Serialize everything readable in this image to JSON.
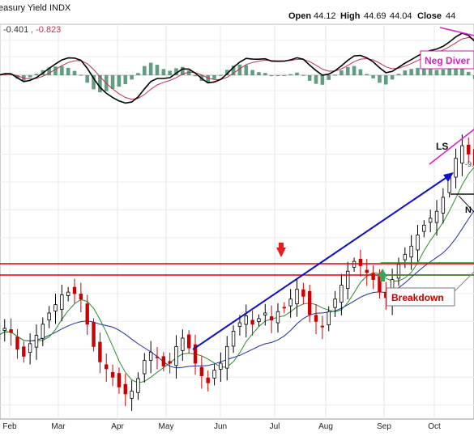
{
  "header": {
    "title": "easury Yield INDX",
    "open_label": "Open",
    "open_value": "44.12",
    "high_label": "High",
    "high_value": "44.69",
    "low_value": "44.04",
    "close_label": "Close",
    "close_value": "44"
  },
  "macd": {
    "values_text_1": "-0.401",
    "values_text_2": ", -0.823",
    "annotation": "Neg Diver",
    "colors": {
      "macd_line": "#000000",
      "signal_line": "#c0304a",
      "histogram": "#2e7d5b",
      "annotation": "#e020c0"
    }
  },
  "price_panel": {
    "breakdown_label": "Breakdown",
    "ls_label": "LS",
    "right_label_1": "-9.",
    "right_label_2": "N",
    "colors": {
      "up": "#000000",
      "down": "#cc0000",
      "ma_fast": "#2e8b2e",
      "ma_slow": "#1f2fa0",
      "resistance": "#dd0000",
      "support": "#2e8b2e",
      "trend": "#1010cc"
    }
  },
  "chart_data": {
    "type": "line",
    "title": "easury Yield INDX",
    "xlabel": "",
    "ylabel": "",
    "x_ticks": [
      "Feb",
      "Mar",
      "Apr",
      "May",
      "Jun",
      "Jul",
      "Aug",
      "Sep",
      "Oct"
    ],
    "grid": true,
    "ohlc": {
      "open": 44.12,
      "high": 44.69,
      "low": 44.04,
      "close": 44
    },
    "macd_readout": [
      -0.401,
      -0.823
    ],
    "series": [
      {
        "values": [
          37.0,
          37.5,
          37.2,
          36.0,
          35.5,
          36.4,
          37.0,
          37.8,
          38.6,
          39.2,
          39.9,
          40.1,
          40.0,
          39.6,
          37.8,
          36.2,
          35.1,
          34.6,
          34.0,
          33.3,
          32.8,
          33.0,
          33.9,
          35.2,
          35.8,
          35.4,
          34.8,
          35.0,
          36.2,
          36.8,
          36.1,
          35.0,
          34.1,
          33.6,
          34.5,
          35.0,
          36.2,
          37.3,
          37.9,
          38.4,
          37.8,
          38.2,
          38.6,
          38.1,
          38.7,
          39.0,
          39.6,
          40.3,
          39.8,
          38.5,
          38.0,
          37.6,
          38.7,
          39.6,
          40.6,
          41.6,
          42.3,
          42.0,
          41.5,
          41.0,
          40.1,
          39.7,
          41.0,
          42.1,
          42.8,
          43.4,
          44.2,
          44.9,
          45.4,
          45.9,
          46.9,
          48.3,
          49.7,
          50.6,
          50.0,
          49.2
        ]
      }
    ]
  }
}
